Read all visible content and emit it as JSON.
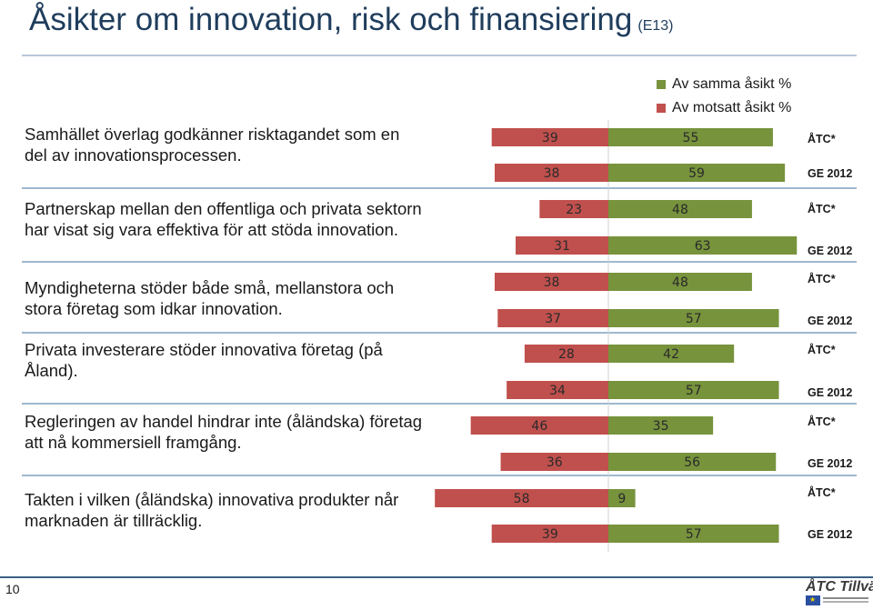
{
  "title": "Åsikter om innovation, risk och finansiering",
  "title_code": "(E13)",
  "page_number": "10",
  "logo_text": "ÅTC Tillväxt",
  "colors": {
    "same": "#77933c",
    "opposite": "#c0504d",
    "rule": "#9eb8d0",
    "title": "#1f3d5c"
  },
  "statements": [
    "Samhället överlag godkänner risktagandet som en del av innovationsprocessen.",
    "Partnerskap mellan den offentliga och privata sektorn har visat sig vara effektiva för att stöda innovation.",
    "Myndigheterna stöder både små, mellanstora och stora företag som idkar innovation.",
    "Privata investerare stöder innovativa företag (på Åland).",
    "Regleringen av handel hindrar inte (åländska) företag att nå kommersiell framgång.",
    "Takten i vilken (åländska) innovativa produkter når marknaden är tillräcklig."
  ],
  "chart_data": {
    "type": "bar",
    "orientation": "horizontal-diverging",
    "series": [
      {
        "name": "Av samma åsikt %",
        "color": "#77933c",
        "values": [
          55,
          59,
          48,
          63,
          48,
          57,
          42,
          57,
          35,
          56,
          9,
          57
        ]
      },
      {
        "name": "Av motsatt åsikt %",
        "color": "#c0504d",
        "values": [
          39,
          38,
          23,
          31,
          38,
          37,
          28,
          34,
          46,
          36,
          58,
          39
        ]
      }
    ],
    "categories": [
      "ÅTC*",
      "GE 2012",
      "ÅTC*",
      "GE 2012",
      "ÅTC*",
      "GE 2012",
      "ÅTC*",
      "GE 2012",
      "ÅTC*",
      "GE 2012",
      "ÅTC*",
      "GE 2012"
    ],
    "groups": 6,
    "legend": "top-right"
  }
}
